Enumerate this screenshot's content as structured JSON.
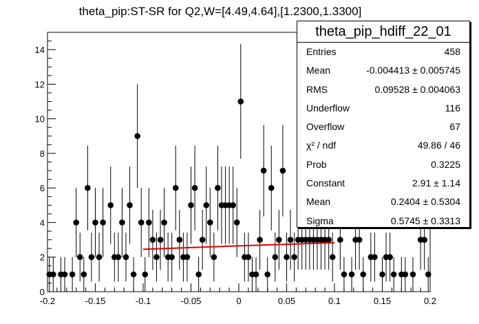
{
  "chart_data": {
    "type": "scatter",
    "title": "theta_pip:ST-SR for Q2,W=[4.49,4.64],[1.2300,1.3300]",
    "xlim": [
      -0.2,
      0.2
    ],
    "ylim": [
      0,
      15
    ],
    "x_ticks": [
      "-0.2",
      "-0.15",
      "-0.1",
      "-0.05",
      "0",
      "0.05",
      "0.1",
      "0.15",
      "0.2"
    ],
    "y_ticks": [
      "0",
      "2",
      "4",
      "6",
      "8",
      "10",
      "12",
      "14"
    ],
    "bin_width": 0.004,
    "series": [
      {
        "style": "points-with-error-bars",
        "color": "#000000",
        "points": [
          {
            "x": -0.198,
            "y": 1
          },
          {
            "x": -0.194,
            "y": 1
          },
          {
            "x": -0.186,
            "y": 1
          },
          {
            "x": -0.182,
            "y": 1
          },
          {
            "x": -0.174,
            "y": 1
          },
          {
            "x": -0.17,
            "y": 4
          },
          {
            "x": -0.166,
            "y": 2
          },
          {
            "x": -0.162,
            "y": 1
          },
          {
            "x": -0.158,
            "y": 6
          },
          {
            "x": -0.154,
            "y": 2
          },
          {
            "x": -0.15,
            "y": 4
          },
          {
            "x": -0.146,
            "y": 2
          },
          {
            "x": -0.142,
            "y": 4
          },
          {
            "x": -0.134,
            "y": 5
          },
          {
            "x": -0.13,
            "y": 2
          },
          {
            "x": -0.126,
            "y": 2
          },
          {
            "x": -0.122,
            "y": 4
          },
          {
            "x": -0.118,
            "y": 2
          },
          {
            "x": -0.114,
            "y": 5
          },
          {
            "x": -0.11,
            "y": 1
          },
          {
            "x": -0.106,
            "y": 9
          },
          {
            "x": -0.102,
            "y": 4
          },
          {
            "x": -0.098,
            "y": 1
          },
          {
            "x": -0.094,
            "y": 4
          },
          {
            "x": -0.09,
            "y": 3
          },
          {
            "x": -0.086,
            "y": 2
          },
          {
            "x": -0.082,
            "y": 3
          },
          {
            "x": -0.078,
            "y": 4
          },
          {
            "x": -0.074,
            "y": 2
          },
          {
            "x": -0.07,
            "y": 2
          },
          {
            "x": -0.066,
            "y": 6
          },
          {
            "x": -0.062,
            "y": 3
          },
          {
            "x": -0.058,
            "y": 2
          },
          {
            "x": -0.054,
            "y": 2
          },
          {
            "x": -0.05,
            "y": 5
          },
          {
            "x": -0.046,
            "y": 6
          },
          {
            "x": -0.042,
            "y": 1
          },
          {
            "x": -0.038,
            "y": 3
          },
          {
            "x": -0.034,
            "y": 5
          },
          {
            "x": -0.03,
            "y": 4
          },
          {
            "x": -0.026,
            "y": 2
          },
          {
            "x": -0.022,
            "y": 6
          },
          {
            "x": -0.018,
            "y": 5
          },
          {
            "x": -0.014,
            "y": 5
          },
          {
            "x": -0.01,
            "y": 5
          },
          {
            "x": -0.006,
            "y": 5
          },
          {
            "x": -0.002,
            "y": 4
          },
          {
            "x": 0.002,
            "y": 11
          },
          {
            "x": 0.006,
            "y": 2
          },
          {
            "x": 0.01,
            "y": 2
          },
          {
            "x": 0.014,
            "y": 1
          },
          {
            "x": 0.018,
            "y": 1
          },
          {
            "x": 0.022,
            "y": 3
          },
          {
            "x": 0.026,
            "y": 7
          },
          {
            "x": 0.03,
            "y": 1
          },
          {
            "x": 0.034,
            "y": 6
          },
          {
            "x": 0.038,
            "y": 2
          },
          {
            "x": 0.042,
            "y": 3
          },
          {
            "x": 0.046,
            "y": 7
          },
          {
            "x": 0.05,
            "y": 2
          },
          {
            "x": 0.054,
            "y": 3
          },
          {
            "x": 0.058,
            "y": 2
          },
          {
            "x": 0.062,
            "y": 3
          },
          {
            "x": 0.066,
            "y": 3
          },
          {
            "x": 0.07,
            "y": 3
          },
          {
            "x": 0.074,
            "y": 3
          },
          {
            "x": 0.078,
            "y": 3
          },
          {
            "x": 0.082,
            "y": 3
          },
          {
            "x": 0.086,
            "y": 3
          },
          {
            "x": 0.09,
            "y": 3
          },
          {
            "x": 0.094,
            "y": 3
          },
          {
            "x": 0.098,
            "y": 2
          },
          {
            "x": 0.106,
            "y": 3
          },
          {
            "x": 0.11,
            "y": 1
          },
          {
            "x": 0.118,
            "y": 1
          },
          {
            "x": 0.122,
            "y": 3
          },
          {
            "x": 0.126,
            "y": 3
          },
          {
            "x": 0.13,
            "y": 1
          },
          {
            "x": 0.138,
            "y": 2
          },
          {
            "x": 0.142,
            "y": 2
          },
          {
            "x": 0.15,
            "y": 1
          },
          {
            "x": 0.154,
            "y": 2
          },
          {
            "x": 0.158,
            "y": 2
          },
          {
            "x": 0.162,
            "y": 1
          },
          {
            "x": 0.17,
            "y": 1
          },
          {
            "x": 0.174,
            "y": 1
          },
          {
            "x": 0.182,
            "y": 1
          },
          {
            "x": 0.19,
            "y": 3
          },
          {
            "x": 0.194,
            "y": 3
          },
          {
            "x": 0.198,
            "y": 1
          }
        ]
      },
      {
        "style": "line",
        "color": "#dd0000",
        "points": [
          {
            "x": -0.1,
            "y": 2.45
          },
          {
            "x": -0.05,
            "y": 2.55
          },
          {
            "x": 0.0,
            "y": 2.65
          },
          {
            "x": 0.05,
            "y": 2.74
          },
          {
            "x": 0.1,
            "y": 2.83
          }
        ]
      }
    ],
    "stats_box": {
      "title": "theta_pip_hdiff_22_01",
      "rows": [
        {
          "key": "Entries",
          "value": "458"
        },
        {
          "key": "Mean",
          "value": "-0.004413 ± 0.005745"
        },
        {
          "key": "RMS",
          "value": "0.09528 ± 0.004063"
        },
        {
          "key": "Underflow",
          "value": "116"
        },
        {
          "key": "Overflow",
          "value": "67"
        },
        {
          "key": "χ² / ndf",
          "value": "49.86 / 46"
        },
        {
          "key": "Prob",
          "value": "0.3225"
        },
        {
          "key": "Constant",
          "value": "2.91 ± 1.14"
        },
        {
          "key": "Mean",
          "value": "0.2404 ± 0.5304"
        },
        {
          "key": "Sigma",
          "value": "0.5745 ± 0.3313"
        }
      ]
    }
  }
}
